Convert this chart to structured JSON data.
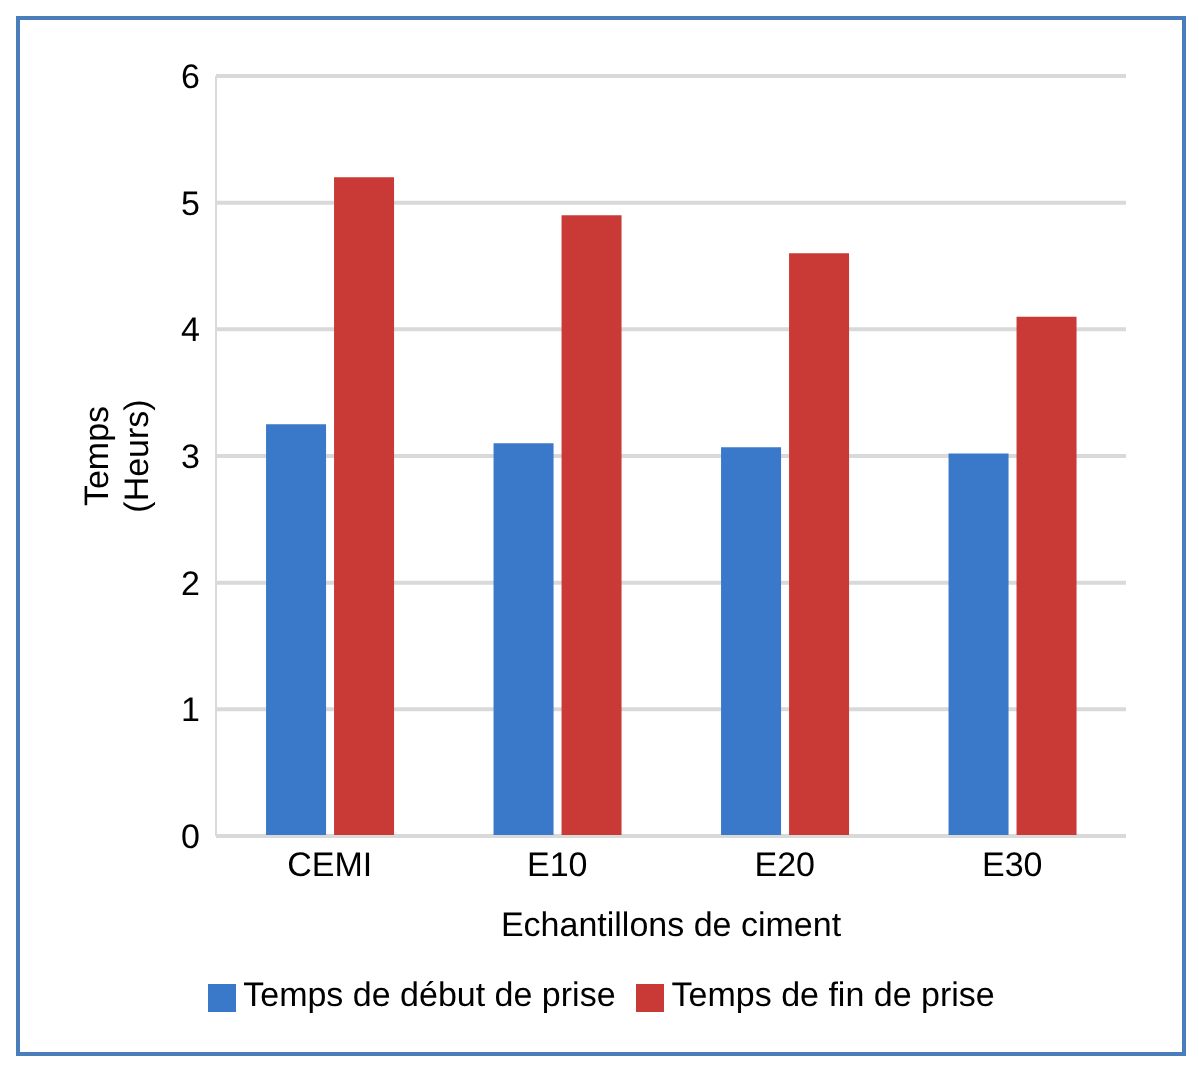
{
  "chart_data": {
    "type": "bar",
    "xlabel": "Echantillons de ciment",
    "ylabel": "Temps (Heurs)",
    "categories": [
      "CEMI",
      "E10",
      "E20",
      "E30"
    ],
    "series": [
      {
        "name": "Temps de début de prise",
        "color": "#3a78c9",
        "values": [
          3.25,
          3.1,
          3.07,
          3.02
        ]
      },
      {
        "name": "Temps de fin de prise",
        "color": "#c93a36",
        "values": [
          5.2,
          4.9,
          4.6,
          4.1
        ]
      }
    ],
    "ylim": [
      0,
      6
    ],
    "yticks": [
      0,
      1,
      2,
      3,
      4,
      5,
      6
    ],
    "grid": "y",
    "legend": "bottom"
  }
}
